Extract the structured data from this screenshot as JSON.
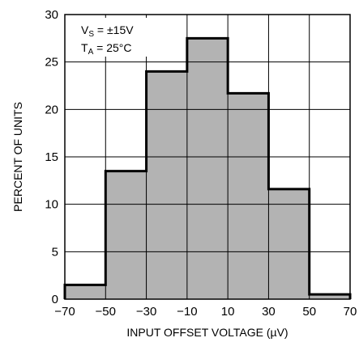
{
  "chart_data": {
    "type": "bar",
    "title": "",
    "xlabel": "INPUT OFFSET VOLTAGE (µV)",
    "ylabel": "PERCENT OF UNITS",
    "bin_edges": [
      -70,
      -50,
      -30,
      -10,
      10,
      30,
      50,
      70
    ],
    "values": [
      1.5,
      13.5,
      24,
      27.5,
      21.7,
      11.6,
      0.5
    ],
    "xlim": [
      -70,
      70
    ],
    "ylim": [
      0,
      30
    ],
    "x_ticks": [
      "−70",
      "−50",
      "−30",
      "−10",
      "10",
      "30",
      "50",
      "70"
    ],
    "y_ticks": [
      "0",
      "5",
      "10",
      "15",
      "20",
      "25",
      "30"
    ],
    "grid": true,
    "bar_color": "#b3b3b3",
    "annotation": {
      "vs_main": "V",
      "vs_sub": "S",
      "vs_rest": " = ±15V",
      "ta_main": "T",
      "ta_sub": "A",
      "ta_rest": " = 25°C"
    }
  }
}
